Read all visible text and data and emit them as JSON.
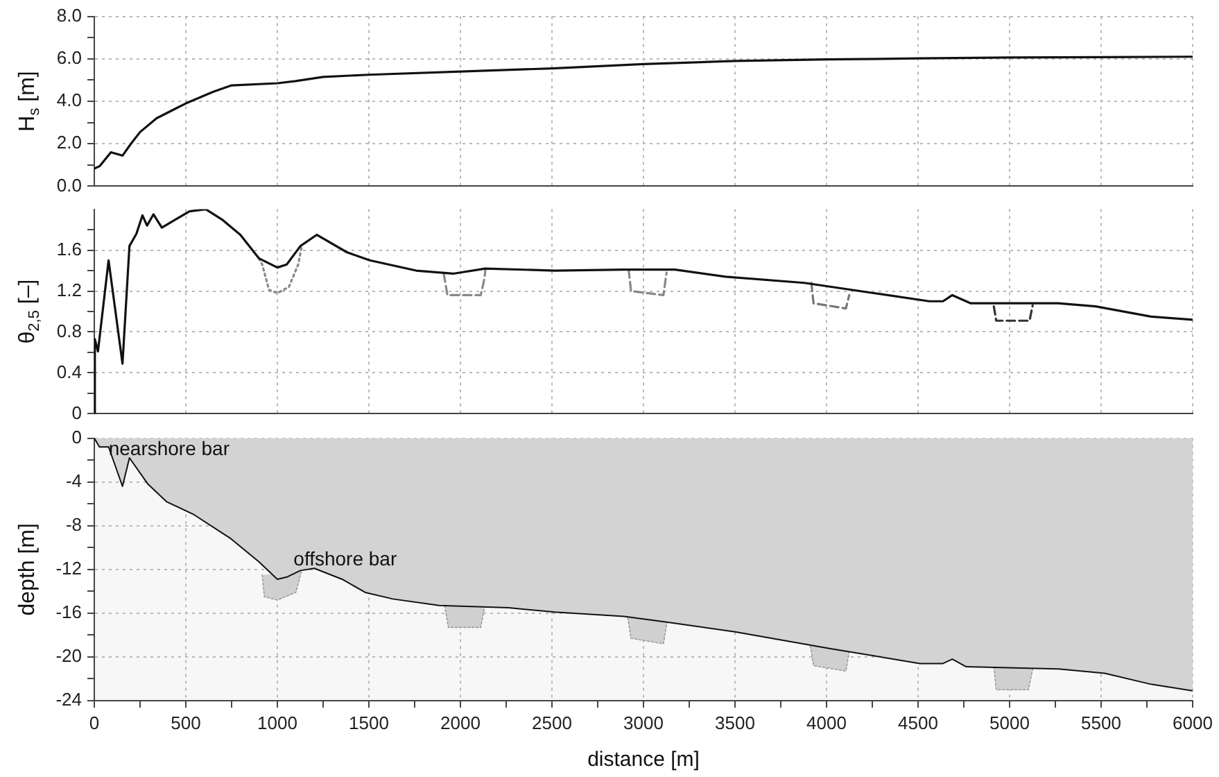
{
  "chart_data": [
    {
      "type": "line",
      "ylabel": "H$_{s}$ [m]",
      "xlim": [
        0,
        6000
      ],
      "xticks": [
        0,
        500,
        1000,
        1500,
        2000,
        2500,
        3000,
        3500,
        4000,
        4500,
        5000,
        5500,
        6000
      ],
      "ylim": [
        0,
        8
      ],
      "yticks": [
        {
          "value": 0,
          "label": "0.0"
        },
        {
          "value": 1,
          "label": null
        },
        {
          "value": 2,
          "label": "2.0"
        },
        {
          "value": 3,
          "label": null
        },
        {
          "value": 4,
          "label": "4.0"
        },
        {
          "value": 5,
          "label": null
        },
        {
          "value": 6,
          "label": "6.0"
        },
        {
          "value": 7,
          "label": null
        },
        {
          "value": 8,
          "label": "8.0"
        }
      ],
      "grid": true,
      "tick_labels": "y",
      "marker": "none",
      "line_style": "solid",
      "series": [
        {
          "color": "#111111",
          "x": [
            0,
            30,
            91,
            154,
            200,
            250,
            340,
            500,
            650,
            750,
            1000,
            1100,
            1250,
            1500,
            2000,
            2500,
            3000,
            3500,
            4000,
            4500,
            5000,
            5500,
            6000
          ],
          "values": [
            0.83,
            0.95,
            1.6,
            1.44,
            2.0,
            2.55,
            3.2,
            3.9,
            4.45,
            4.75,
            4.85,
            4.95,
            5.15,
            5.25,
            5.4,
            5.55,
            5.75,
            5.9,
            5.97,
            6.02,
            6.06,
            6.08,
            6.1
          ]
        }
      ]
    },
    {
      "type": "line",
      "ylabel": "θ$_{2,5}$ [–]",
      "xlim": [
        0,
        6000
      ],
      "xticks": [
        0,
        500,
        1000,
        1500,
        2000,
        2500,
        3000,
        3500,
        4000,
        4500,
        5000,
        5500,
        6000
      ],
      "ylim": [
        0,
        2.0
      ],
      "yticks": [
        0,
        {
          "value": 0.2,
          "label": null
        },
        0.4,
        {
          "value": 0.6,
          "label": null
        },
        0.8,
        {
          "value": 1.0,
          "label": null
        },
        1.2,
        {
          "value": 1.4,
          "label": null
        },
        1.6,
        {
          "value": 1.8,
          "label": null
        }
      ],
      "grid": true,
      "tick_labels": "y",
      "marker": "none",
      "line_style": "solid",
      "series": [
        {
          "color": "#111111",
          "x": [
            0,
            3,
            20,
            78,
            154,
            192,
            230,
            263,
            288,
            323,
            369,
            444,
            520,
            609,
            697,
            798,
            899,
            1000,
            1051,
            1126,
            1215,
            1379,
            1505,
            1758,
            1960,
            2136,
            2515,
            2894,
            3172,
            3449,
            3879,
            4258,
            4561,
            4636,
            4687,
            4788,
            5265,
            5470,
            5773,
            6000
          ],
          "values": [
            0,
            0.73,
            0.61,
            1.5,
            0.49,
            1.64,
            1.76,
            1.94,
            1.84,
            1.95,
            1.82,
            1.9,
            1.98,
            2.0,
            1.9,
            1.75,
            1.52,
            1.43,
            1.46,
            1.64,
            1.75,
            1.58,
            1.5,
            1.4,
            1.37,
            1.42,
            1.4,
            1.41,
            1.41,
            1.34,
            1.28,
            1.18,
            1.1,
            1.1,
            1.16,
            1.08,
            1.08,
            1.05,
            0.95,
            0.92
          ]
        },
        {
          "color": "#888888",
          "line_style": "dotted",
          "x": [
            899,
            917,
            955,
            1000,
            1063,
            1114,
            1131
          ],
          "values": [
            1.52,
            1.46,
            1.21,
            1.18,
            1.24,
            1.46,
            1.62
          ]
        },
        {
          "color": "#888888",
          "line_style": "dashed",
          "x": [
            1909,
            1929,
            2111,
            2131,
            2136
          ],
          "values": [
            1.37,
            1.16,
            1.16,
            1.32,
            1.4
          ]
        },
        {
          "color": "#888888",
          "line_style": "dashed",
          "x": [
            2919,
            2932,
            3109,
            3126
          ],
          "values": [
            1.41,
            1.2,
            1.16,
            1.38
          ]
        },
        {
          "color": "#777777",
          "line_style": "dashed",
          "x": [
            3917,
            3929,
            4106,
            4124
          ],
          "values": [
            1.28,
            1.08,
            1.03,
            1.16
          ]
        },
        {
          "color": "#333333",
          "line_style": "dashed",
          "x": [
            4914,
            4927,
            5109,
            5126
          ],
          "values": [
            1.05,
            0.91,
            0.91,
            1.06
          ]
        }
      ]
    },
    {
      "type": "area",
      "xlabel": "distance [m]",
      "ylabel": "depth [m]",
      "xlim": [
        0,
        6000
      ],
      "xticks": [
        0,
        {
          "value": 250,
          "label": null
        },
        500,
        {
          "value": 750,
          "label": null
        },
        1000,
        {
          "value": 1250,
          "label": null
        },
        1500,
        {
          "value": 1750,
          "label": null
        },
        2000,
        {
          "value": 2250,
          "label": null
        },
        2500,
        {
          "value": 2750,
          "label": null
        },
        3000,
        {
          "value": 3250,
          "label": null
        },
        3500,
        {
          "value": 3750,
          "label": null
        },
        4000,
        {
          "value": 4250,
          "label": null
        },
        4500,
        {
          "value": 4750,
          "label": null
        },
        5000,
        {
          "value": 5250,
          "label": null
        },
        5500,
        {
          "value": 5750,
          "label": null
        },
        6000
      ],
      "ylim": [
        -24,
        0
      ],
      "yticks": [
        0,
        {
          "value": -2,
          "label": null
        },
        -4,
        {
          "value": -6,
          "label": null
        },
        -8,
        {
          "value": -10,
          "label": null
        },
        -12,
        {
          "value": -14,
          "label": null
        },
        -16,
        {
          "value": -18,
          "label": null
        },
        -20,
        {
          "value": -22,
          "label": null
        },
        -24
      ],
      "grid": true,
      "marker": "none",
      "annotations": [
        {
          "text": "nearshore bar",
          "x": 192,
          "y": -1.8
        },
        {
          "text": "offshore bar",
          "x": 1202,
          "y": -11.9
        }
      ],
      "series": [
        {
          "color": "#d3d3d3",
          "x": [
            0,
            28,
            78,
            154,
            192,
            293,
            394,
            545,
            747,
            899,
            1000,
            1051,
            1126,
            1202,
            1354,
            1480,
            1631,
            1884,
            2263,
            2515,
            2894,
            3121,
            3500,
            4005,
            4510,
            4636,
            4687,
            4763,
            5268,
            5520,
            5773,
            6000
          ],
          "values": [
            0,
            -0.8,
            -0.8,
            -4.4,
            -1.8,
            -4.2,
            -5.8,
            -7.0,
            -9.2,
            -11.3,
            -12.9,
            -12.7,
            -12.1,
            -11.9,
            -12.9,
            -14.1,
            -14.7,
            -15.3,
            -15.5,
            -15.9,
            -16.3,
            -16.8,
            -17.7,
            -19.2,
            -20.6,
            -20.6,
            -20.2,
            -20.9,
            -21.1,
            -21.5,
            -22.5,
            -23.1
          ]
        },
        {
          "color": "#d0d0d0",
          "x": [
            917,
            929,
            1000,
            1101,
            1131
          ],
          "values": [
            -12.5,
            -14.5,
            -14.8,
            -14.1,
            -12.2
          ]
        },
        {
          "color": "#d0d0d0",
          "x": [
            1914,
            1934,
            2111,
            2131
          ],
          "values": [
            -15.3,
            -17.3,
            -17.3,
            -15.5
          ]
        },
        {
          "color": "#d0d0d0",
          "x": [
            2914,
            2932,
            3109,
            3129
          ],
          "values": [
            -16.4,
            -18.3,
            -18.8,
            -16.8
          ]
        },
        {
          "color": "#d0d0d0",
          "x": [
            3912,
            3929,
            4106,
            4126
          ],
          "values": [
            -19.0,
            -20.8,
            -21.3,
            -19.3
          ]
        },
        {
          "color": "#d0d0d0",
          "x": [
            4914,
            4927,
            5103,
            5126
          ],
          "values": [
            -20.9,
            -23.0,
            -23.0,
            -21.1
          ]
        }
      ]
    }
  ]
}
